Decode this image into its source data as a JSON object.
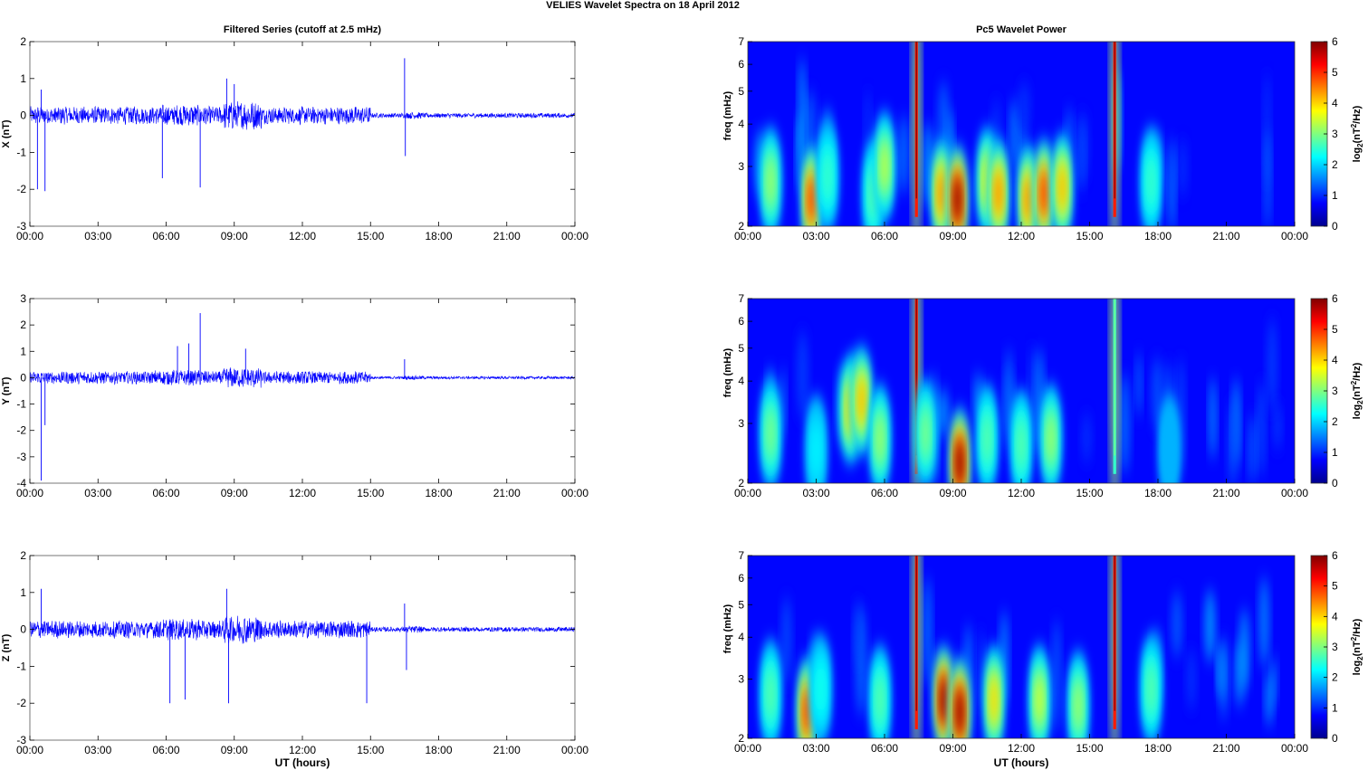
{
  "figure": {
    "title": "VELIES Wavelet Spectra on 18 April     2012",
    "left_title": "Filtered Series (cutoff at 2.5 mHz)",
    "right_title": "Pc5 Wavelet Power",
    "xlabel": "UT (hours)"
  },
  "chart_data": [
    {
      "type": "line",
      "id": "x-series",
      "ylabel": "X (nT)",
      "x_range_hours": [
        0,
        24
      ],
      "xticks": [
        "00:00",
        "03:00",
        "06:00",
        "09:00",
        "12:00",
        "15:00",
        "18:00",
        "21:00",
        "00:00"
      ],
      "ylim": [
        -3,
        2
      ],
      "yticks": [
        "-3",
        "-2",
        "-1",
        "0",
        "1",
        "2"
      ],
      "color": "#0000ff",
      "noise_amplitude_nT": {
        "00:00-15:00": 0.22,
        "15:00-24:00": 0.06
      },
      "spikes": [
        {
          "t": "00:20",
          "value": -2.0
        },
        {
          "t": "00:40",
          "value": -2.05
        },
        {
          "t": "00:30",
          "value": 0.7
        },
        {
          "t": "05:50",
          "value": -1.7
        },
        {
          "t": "07:30",
          "value": -1.95
        },
        {
          "t": "08:40",
          "value": 1.0
        },
        {
          "t": "09:00",
          "value": 0.85
        },
        {
          "t": "16:30",
          "value": 1.55
        },
        {
          "t": "16:32",
          "value": -1.1
        }
      ]
    },
    {
      "type": "line",
      "id": "y-series",
      "ylabel": "Y (nT)",
      "x_range_hours": [
        0,
        24
      ],
      "xticks": [
        "00:00",
        "03:00",
        "06:00",
        "09:00",
        "12:00",
        "15:00",
        "18:00",
        "21:00",
        "00:00"
      ],
      "ylim": [
        -4,
        3
      ],
      "yticks": [
        "-4",
        "-3",
        "-2",
        "-1",
        "0",
        "1",
        "2",
        "3"
      ],
      "color": "#0000ff",
      "noise_amplitude_nT": {
        "00:00-15:00": 0.22,
        "15:00-24:00": 0.05
      },
      "spikes": [
        {
          "t": "00:30",
          "value": -3.9
        },
        {
          "t": "00:40",
          "value": -1.8
        },
        {
          "t": "06:30",
          "value": 1.2
        },
        {
          "t": "07:00",
          "value": 1.3
        },
        {
          "t": "07:30",
          "value": 2.45
        },
        {
          "t": "09:30",
          "value": 1.1
        },
        {
          "t": "16:30",
          "value": 0.7
        }
      ]
    },
    {
      "type": "line",
      "id": "z-series",
      "ylabel": "Z (nT)",
      "x_range_hours": [
        0,
        24
      ],
      "xticks": [
        "00:00",
        "03:00",
        "06:00",
        "09:00",
        "12:00",
        "15:00",
        "18:00",
        "21:00",
        "00:00"
      ],
      "ylim": [
        -3,
        2
      ],
      "yticks": [
        "-3",
        "-2",
        "-1",
        "0",
        "1",
        "2"
      ],
      "color": "#0000ff",
      "noise_amplitude_nT": {
        "00:00-15:00": 0.22,
        "15:00-24:00": 0.06
      },
      "spikes": [
        {
          "t": "00:30",
          "value": 1.1
        },
        {
          "t": "06:10",
          "value": -2.0
        },
        {
          "t": "06:50",
          "value": -1.9
        },
        {
          "t": "08:40",
          "value": 1.1
        },
        {
          "t": "08:45",
          "value": -2.0
        },
        {
          "t": "14:50",
          "value": -2.0
        },
        {
          "t": "16:30",
          "value": 0.7
        },
        {
          "t": "16:35",
          "value": -1.1
        }
      ]
    },
    {
      "type": "heatmap",
      "id": "x-wavelet",
      "ylabel_prefix": "freq (mHz)",
      "ylim_mHz": [
        2,
        7
      ],
      "yscale": "log",
      "yticks": [
        "2",
        "3",
        "4",
        "5",
        "6",
        "7"
      ],
      "xticks": [
        "00:00",
        "03:00",
        "06:00",
        "09:00",
        "12:00",
        "15:00",
        "18:00",
        "21:00",
        "00:00"
      ],
      "colorbar": {
        "range": [
          0,
          6
        ],
        "ticks": [
          "0",
          "1",
          "2",
          "3",
          "4",
          "5",
          "6"
        ],
        "label": "log",
        "label_sub": "2",
        "label_main": "(nT",
        "label_sup": "2",
        "label_end": "/Hz)"
      },
      "blobs": [
        {
          "t": 1.0,
          "f": 2.7,
          "p": 3.2
        },
        {
          "t": 2.8,
          "f": 2.4,
          "p": 5.0
        },
        {
          "t": 3.5,
          "f": 2.8,
          "p": 2.6
        },
        {
          "t": 5.5,
          "f": 2.5,
          "p": 2.8
        },
        {
          "t": 6.0,
          "f": 3.0,
          "p": 3.4
        },
        {
          "t": 7.4,
          "f": 4.5,
          "p": 6.0,
          "vertical": true
        },
        {
          "t": 8.5,
          "f": 2.5,
          "p": 4.5
        },
        {
          "t": 9.2,
          "f": 2.4,
          "p": 6.0
        },
        {
          "t": 10.5,
          "f": 2.7,
          "p": 3.8
        },
        {
          "t": 11.0,
          "f": 2.5,
          "p": 4.5
        },
        {
          "t": 12.3,
          "f": 2.4,
          "p": 4.5
        },
        {
          "t": 13.0,
          "f": 2.5,
          "p": 5.0
        },
        {
          "t": 13.8,
          "f": 2.6,
          "p": 4.2
        },
        {
          "t": 16.1,
          "f": 4.5,
          "p": 6.0,
          "vertical": true
        },
        {
          "t": 17.7,
          "f": 2.7,
          "p": 2.6
        }
      ]
    },
    {
      "type": "heatmap",
      "id": "y-wavelet",
      "ylabel_prefix": "freq (mHz)",
      "ylim_mHz": [
        2,
        7
      ],
      "yscale": "log",
      "yticks": [
        "2",
        "3",
        "4",
        "5",
        "6",
        "7"
      ],
      "xticks": [
        "00:00",
        "03:00",
        "06:00",
        "09:00",
        "12:00",
        "15:00",
        "18:00",
        "21:00",
        "00:00"
      ],
      "colorbar": {
        "range": [
          0,
          6
        ],
        "ticks": [
          "0",
          "1",
          "2",
          "3",
          "4",
          "5",
          "6"
        ],
        "label": "log",
        "label_sub": "2",
        "label_main": "(nT",
        "label_sup": "2",
        "label_end": "/Hz)"
      },
      "blobs": [
        {
          "t": 1.0,
          "f": 2.8,
          "p": 3.0
        },
        {
          "t": 3.0,
          "f": 2.5,
          "p": 2.2
        },
        {
          "t": 4.5,
          "f": 3.3,
          "p": 4.0
        },
        {
          "t": 5.0,
          "f": 3.5,
          "p": 4.2
        },
        {
          "t": 5.8,
          "f": 2.7,
          "p": 3.2
        },
        {
          "t": 7.4,
          "f": 4.5,
          "p": 6.0,
          "vertical": true
        },
        {
          "t": 7.8,
          "f": 2.8,
          "p": 3.0
        },
        {
          "t": 9.3,
          "f": 2.3,
          "p": 6.0
        },
        {
          "t": 10.5,
          "f": 2.7,
          "p": 2.8
        },
        {
          "t": 12.0,
          "f": 2.6,
          "p": 2.8
        },
        {
          "t": 13.3,
          "f": 2.7,
          "p": 3.2
        },
        {
          "t": 16.1,
          "f": 5.0,
          "p": 3.0,
          "vertical": true
        },
        {
          "t": 18.5,
          "f": 2.5,
          "p": 1.8
        }
      ]
    },
    {
      "type": "heatmap",
      "id": "z-wavelet",
      "ylabel_prefix": "freq (mHz)",
      "ylim_mHz": [
        2,
        7
      ],
      "yscale": "log",
      "yticks": [
        "2",
        "3",
        "4",
        "5",
        "6",
        "7"
      ],
      "xticks": [
        "00:00",
        "03:00",
        "06:00",
        "09:00",
        "12:00",
        "15:00",
        "18:00",
        "21:00",
        "00:00"
      ],
      "colorbar": {
        "range": [
          0,
          6
        ],
        "ticks": [
          "0",
          "1",
          "2",
          "3",
          "4",
          "5",
          "6"
        ],
        "label": "log",
        "label_sub": "2",
        "label_main": "(nT",
        "label_sup": "2",
        "label_end": "/Hz)"
      },
      "blobs": [
        {
          "t": 1.0,
          "f": 2.7,
          "p": 2.8
        },
        {
          "t": 2.6,
          "f": 2.4,
          "p": 5.0
        },
        {
          "t": 3.2,
          "f": 2.8,
          "p": 2.4
        },
        {
          "t": 5.8,
          "f": 2.6,
          "p": 2.8
        },
        {
          "t": 7.4,
          "f": 4.5,
          "p": 6.0,
          "vertical": true
        },
        {
          "t": 8.6,
          "f": 2.6,
          "p": 6.0
        },
        {
          "t": 9.3,
          "f": 2.4,
          "p": 6.0
        },
        {
          "t": 10.8,
          "f": 2.6,
          "p": 4.0
        },
        {
          "t": 12.8,
          "f": 2.6,
          "p": 3.5
        },
        {
          "t": 14.5,
          "f": 2.5,
          "p": 3.2
        },
        {
          "t": 16.1,
          "f": 4.5,
          "p": 6.0,
          "vertical": true
        },
        {
          "t": 17.7,
          "f": 2.8,
          "p": 2.8
        }
      ]
    }
  ]
}
